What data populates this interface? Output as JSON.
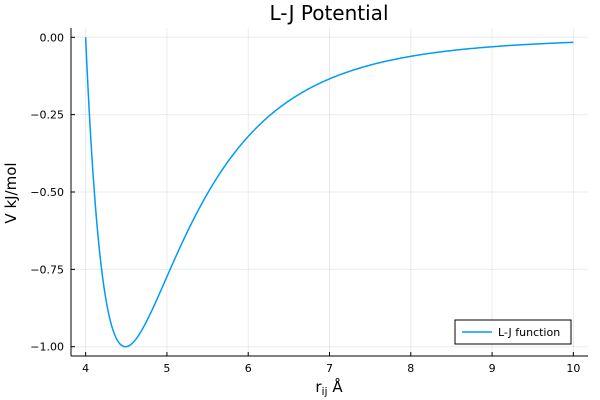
{
  "chart_data": {
    "type": "line",
    "title": "L-J Potential",
    "xlabel_main": "r",
    "xlabel_sub": "ij",
    "xlabel_unit": " Å",
    "ylabel": "V kJ/mol",
    "xlim": [
      3.82,
      10.18
    ],
    "ylim": [
      -1.03,
      0.03
    ],
    "x_ticks": [
      4,
      5,
      6,
      7,
      8,
      9,
      10
    ],
    "x_tick_labels": [
      "4",
      "5",
      "6",
      "7",
      "8",
      "9",
      "10"
    ],
    "y_ticks": [
      0.0,
      -0.25,
      -0.5,
      -0.75,
      -1.0
    ],
    "y_tick_labels": [
      "0.00",
      "−0.25",
      "−0.50",
      "−0.75",
      "−1.00"
    ],
    "grid": true,
    "legend_position": "bottom-right",
    "series": [
      {
        "name": "L-J function",
        "color": "#009af9",
        "function": "lennard-jones",
        "epsilon": 1.0,
        "sigma": 4.0,
        "x_range": [
          4.0,
          10.0
        ],
        "sample_points": [
          {
            "x": 4.0,
            "y": 0.0
          },
          {
            "x": 4.49,
            "y": -1.0
          },
          {
            "x": 5.0,
            "y": -0.75
          },
          {
            "x": 6.0,
            "y": -0.32
          },
          {
            "x": 7.0,
            "y": -0.14
          },
          {
            "x": 8.0,
            "y": -0.06
          },
          {
            "x": 9.0,
            "y": -0.03
          },
          {
            "x": 10.0,
            "y": -0.016
          }
        ]
      }
    ]
  }
}
